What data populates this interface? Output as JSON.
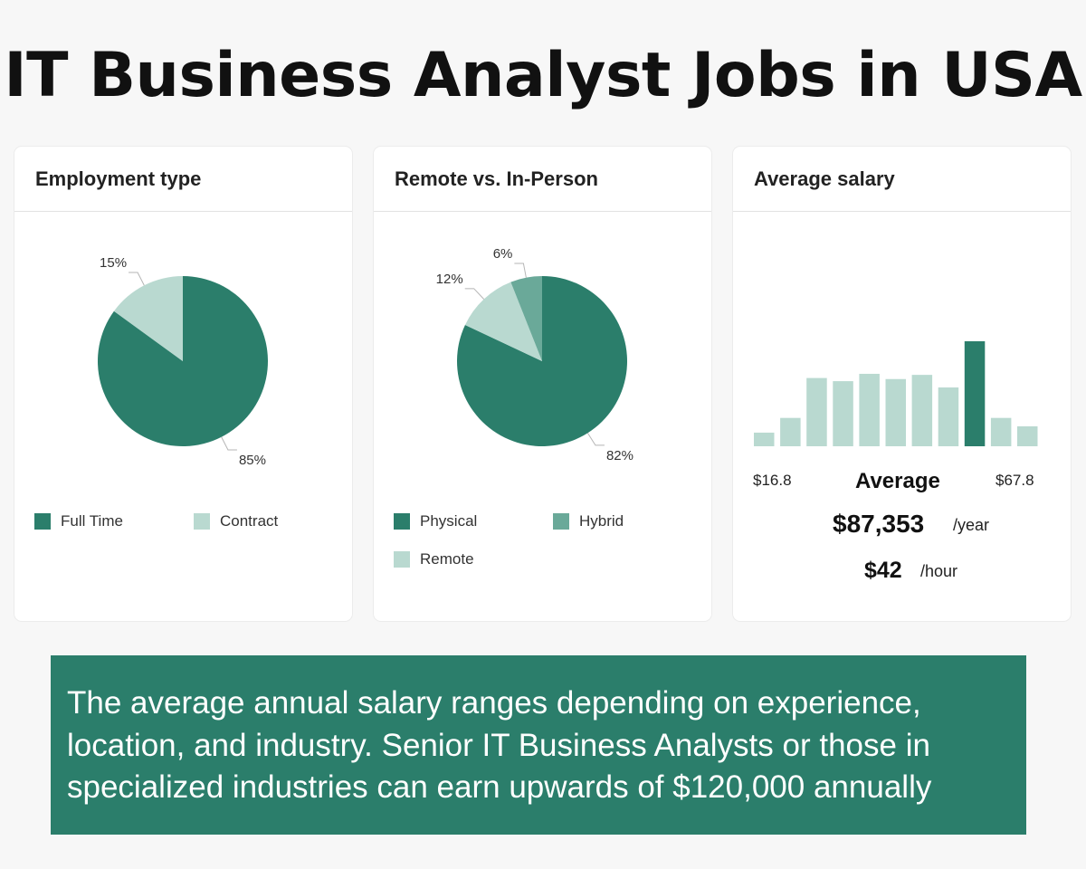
{
  "title": "IT Business Analyst Jobs in USA",
  "colors": {
    "dark": "#2b7e6b",
    "medium": "#6aa999",
    "light": "#b9d9d0",
    "banner": "#2b7e6b"
  },
  "chart_data": [
    {
      "type": "pie",
      "title": "Employment type",
      "slices": [
        {
          "label": "Full Time",
          "value": 85,
          "display": "85%",
          "color": "#2b7e6b"
        },
        {
          "label": "Contract",
          "value": 15,
          "display": "15%",
          "color": "#b9d9d0"
        }
      ],
      "legend": [
        "Full Time",
        "Contract"
      ]
    },
    {
      "type": "pie",
      "title": "Remote vs. In-Person",
      "slices": [
        {
          "label": "Physical",
          "value": 82,
          "display": "82%",
          "color": "#2b7e6b"
        },
        {
          "label": "Remote",
          "value": 12,
          "display": "12%",
          "color": "#b9d9d0"
        },
        {
          "label": "Hybrid",
          "value": 6,
          "display": "6%",
          "color": "#6aa999"
        }
      ],
      "legend": [
        "Physical",
        "Hybrid",
        "Remote"
      ]
    },
    {
      "type": "bar",
      "title": "Average salary",
      "values": [
        0.13,
        0.27,
        0.65,
        0.62,
        0.69,
        0.64,
        0.68,
        0.56,
        1.0,
        0.27,
        0.19
      ],
      "highlight_index": 8,
      "min_label": "$16.8",
      "max_label": "$67.8",
      "average_label": "Average",
      "annual": "$87,353",
      "annual_unit": "/year",
      "hourly": "$42",
      "hourly_unit": "/hour"
    }
  ],
  "banner_text": "The average annual salary ranges depending on experience, location, and industry. Senior IT Business Analysts or those in specialized industries can earn upwards of $120,000 annually"
}
